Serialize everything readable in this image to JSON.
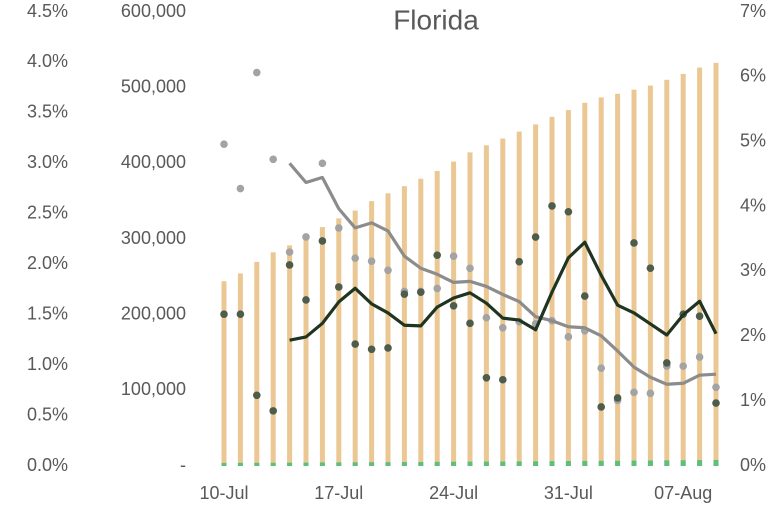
{
  "chart_data": {
    "type": "combo",
    "title": "Florida",
    "categories": [
      "10-Jul",
      null,
      null,
      null,
      null,
      null,
      null,
      "17-Jul",
      null,
      null,
      null,
      null,
      null,
      null,
      "24-Jul",
      null,
      null,
      null,
      null,
      null,
      null,
      "31-Jul",
      null,
      null,
      null,
      null,
      null,
      null,
      "07-Aug",
      null,
      null
    ],
    "series": [
      {
        "type": "bar",
        "axis": "y3",
        "color": "#ebc893",
        "values": [
          244151,
          254511,
          269811,
          282435,
          291629,
          301810,
          315775,
          327241,
          337569,
          350047,
          360394,
          369834,
          379619,
          389868,
          402312,
          414511,
          423855,
          432747,
          441977,
          451423,
          461379,
          470386,
          480028,
          487132,
          491884,
          497330,
          502739,
          510389,
          518075,
          526577,
          532806
        ]
      },
      {
        "type": "bar",
        "axis": "y3",
        "color": "#5cbf7a",
        "values": [
          4111,
          4207,
          4252,
          4287,
          4419,
          4552,
          4672,
          4799,
          4889,
          4979,
          5077,
          5209,
          5345,
          5518,
          5653,
          5783,
          5860,
          5868,
          6055,
          6242,
          6431,
          6591,
          6745,
          6843,
          6916,
          7135,
          7300,
          7526,
          7630,
          7771,
          8051
        ]
      },
      {
        "type": "scatter",
        "axis": "y",
        "color": "#a3a3a3",
        "values": [
          3.19,
          2.75,
          3.9,
          3.04,
          2.12,
          2.27,
          3.0,
          2.36,
          2.06,
          2.03,
          1.94,
          1.73,
          1.73,
          1.76,
          2.08,
          1.96,
          1.47,
          1.37,
          1.43,
          1.41,
          1.44,
          1.28,
          1.34,
          0.97,
          0.65,
          0.73,
          0.72,
          0.99,
          0.99,
          1.08,
          0.78
        ]
      },
      {
        "type": "scatter",
        "axis": "y2",
        "color": "#4e5c4b",
        "values": [
          2.34,
          2.34,
          1.09,
          0.85,
          3.1,
          2.56,
          3.47,
          2.76,
          1.88,
          1.8,
          1.82,
          2.65,
          2.68,
          3.25,
          2.47,
          2.2,
          1.36,
          1.33,
          3.15,
          3.53,
          4.01,
          3.92,
          2.62,
          0.91,
          1.05,
          3.44,
          3.05,
          1.59,
          2.34,
          2.31,
          0.97
        ]
      },
      {
        "type": "line",
        "axis": "y",
        "color": "#8c8c8c",
        "values": [
          null,
          null,
          null,
          null,
          3.0,
          2.81,
          2.86,
          2.55,
          2.36,
          2.41,
          2.33,
          2.08,
          1.96,
          1.9,
          1.82,
          1.83,
          1.78,
          1.7,
          1.63,
          1.48,
          1.44,
          1.38,
          1.37,
          1.29,
          1.14,
          0.98,
          0.88,
          0.81,
          0.82,
          0.9,
          0.91
        ]
      },
      {
        "type": "line",
        "axis": "y2",
        "color": "#1f3521",
        "values": [
          null,
          null,
          null,
          null,
          1.94,
          1.99,
          2.2,
          2.53,
          2.74,
          2.5,
          2.36,
          2.17,
          2.16,
          2.45,
          2.59,
          2.67,
          2.51,
          2.28,
          2.25,
          2.1,
          2.68,
          3.21,
          3.45,
          2.94,
          2.48,
          2.36,
          2.19,
          2.02,
          2.33,
          2.54,
          2.04
        ]
      }
    ],
    "ylim": [
      0,
      4.5
    ],
    "yticks": [
      {
        "value": 0,
        "label": "0.0%"
      },
      {
        "value": 0.5,
        "label": "0.5%"
      },
      {
        "value": 1,
        "label": "1.0%"
      },
      {
        "value": 1.5,
        "label": "1.5%"
      },
      {
        "value": 2,
        "label": "2.0%"
      },
      {
        "value": 2.5,
        "label": "2.5%"
      },
      {
        "value": 3,
        "label": "3.0%"
      },
      {
        "value": 3.5,
        "label": "3.5%"
      },
      {
        "value": 4,
        "label": "4.0%"
      },
      {
        "value": 4.5,
        "label": "4.5%"
      }
    ],
    "y3lim": [
      0,
      600000
    ],
    "y3ticks": [
      {
        "value": 0,
        "label": "-"
      },
      {
        "value": 100000,
        "label": "100,000"
      },
      {
        "value": 200000,
        "label": "200,000"
      },
      {
        "value": 300000,
        "label": "300,000"
      },
      {
        "value": 400000,
        "label": "400,000"
      },
      {
        "value": 500000,
        "label": "500,000"
      },
      {
        "value": 600000,
        "label": "600,000"
      }
    ],
    "y2lim": [
      0,
      7
    ],
    "y2ticks": [
      {
        "value": 0,
        "label": "0%"
      },
      {
        "value": 1,
        "label": "1%"
      },
      {
        "value": 2,
        "label": "2%"
      },
      {
        "value": 3,
        "label": "3%"
      },
      {
        "value": 4,
        "label": "4%"
      },
      {
        "value": 5,
        "label": "5%"
      },
      {
        "value": 6,
        "label": "6%"
      },
      {
        "value": 7,
        "label": "7%"
      }
    ],
    "grid": false
  }
}
